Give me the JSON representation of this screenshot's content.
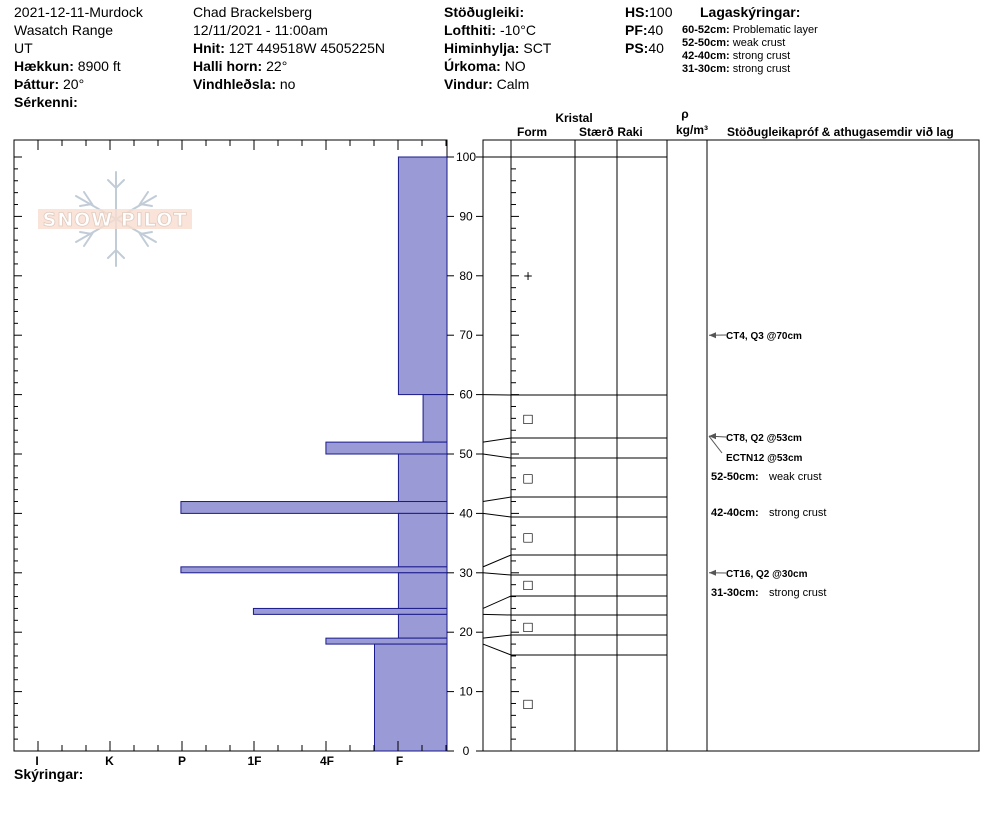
{
  "header": {
    "col1": {
      "line1": "2021-12-11-Murdock",
      "line2": "Wasatch Range",
      "line3": "UT",
      "elev_label": "Hækkun:",
      "elev_value": "8900 ft",
      "aspect_label": "Þáttur:",
      "aspect_value": "20°",
      "features_label": "Sérkenni:"
    },
    "col2": {
      "observer": "Chad Brackelsberg",
      "datetime": "12/11/2021 - 11:00am",
      "coord_label": "Hnit:",
      "coord_value": "12T 449518W 4505225N",
      "slope_label": "Halli horn:",
      "slope_value": "22°",
      "wind_load_label": "Vindhleðsla:",
      "wind_load_value": "no"
    },
    "col3": {
      "stability_label": "Stöðugleiki:",
      "airtemp_label": "Lofthiti:",
      "airtemp_value": "-10°C",
      "sky_label": "Himinhylja:",
      "sky_value": "SCT",
      "precip_label": "Úrkoma:",
      "precip_value": "NO",
      "wind_label": "Vindur:",
      "wind_value": "Calm"
    },
    "col4": {
      "hs_label": "HS:",
      "hs_value": "100",
      "pf_label": "PF:",
      "pf_value": "40",
      "ps_label": "PS:",
      "ps_value": "40"
    },
    "legend": {
      "title": "Lagaskýringar:",
      "items": [
        {
          "range": "60-52cm:",
          "text": "Problematic layer"
        },
        {
          "range": "52-50cm:",
          "text": "weak crust"
        },
        {
          "range": "42-40cm:",
          "text": "strong crust"
        },
        {
          "range": "31-30cm:",
          "text": "strong crust"
        }
      ]
    }
  },
  "logo_text": "SNOW PILOT",
  "footer": {
    "notes_label": "Skýringar:"
  },
  "colors": {
    "hardness_fill": "#9a9ad6",
    "hardness_stroke": "#1a1a8a",
    "arrow": "#555555"
  },
  "columns": {
    "kristal": "Kristal",
    "form": "Form",
    "size": "Stærð",
    "moisture": "Raki",
    "rho": "ρ",
    "density_unit": "kg/m³",
    "comments": "Stöðugleikapróf & athugasemdir við lag"
  },
  "chart_data": {
    "type": "snow-profile",
    "y_axis": {
      "min": 0,
      "max": 100,
      "ticks": [
        0,
        10,
        20,
        30,
        40,
        50,
        60,
        70,
        80,
        90,
        100
      ]
    },
    "hardness_scale": [
      "I",
      "K",
      "P",
      "1F",
      "4F",
      "F"
    ],
    "layers": [
      {
        "top": 100,
        "bottom": 60,
        "hardness": 0.67
      },
      {
        "top": 60,
        "bottom": 52,
        "hardness": 0.33
      },
      {
        "top": 52,
        "bottom": 50,
        "hardness": 1.67
      },
      {
        "top": 50,
        "bottom": 42,
        "hardness": 0.67
      },
      {
        "top": 42,
        "bottom": 40,
        "hardness": 3.67
      },
      {
        "top": 40,
        "bottom": 31,
        "hardness": 0.67
      },
      {
        "top": 31,
        "bottom": 30,
        "hardness": 3.67
      },
      {
        "top": 30,
        "bottom": 24,
        "hardness": 0.67
      },
      {
        "top": 24,
        "bottom": 23,
        "hardness": 2.67
      },
      {
        "top": 23,
        "bottom": 19,
        "hardness": 0.67
      },
      {
        "top": 19,
        "bottom": 18,
        "hardness": 1.67
      },
      {
        "top": 18,
        "bottom": 0,
        "hardness": 1.0
      }
    ],
    "grain_symbols": [
      {
        "y": 80,
        "symbol": "+"
      },
      {
        "y": 56,
        "symbol": "□"
      },
      {
        "y": 46,
        "symbol": "□"
      },
      {
        "y": 36,
        "symbol": "□"
      },
      {
        "y": 28,
        "symbol": "□"
      },
      {
        "y": 21,
        "symbol": "□"
      },
      {
        "y": 8,
        "symbol": "□"
      }
    ],
    "stability_tests": [
      {
        "depth": 70,
        "label": "CT4, Q3 @70cm"
      },
      {
        "depth": 53,
        "label": "CT8, Q2 @53cm"
      },
      {
        "depth": 53,
        "label": "ECTN12 @53cm"
      },
      {
        "depth": 30,
        "label": "CT16, Q2 @30cm"
      }
    ],
    "layer_comments": [
      {
        "depth": 50,
        "range": "52-50cm:",
        "text": "weak crust"
      },
      {
        "depth": 40,
        "range": "42-40cm:",
        "text": "strong crust"
      },
      {
        "depth": 30,
        "range": "31-30cm:",
        "text": "strong crust"
      }
    ]
  }
}
